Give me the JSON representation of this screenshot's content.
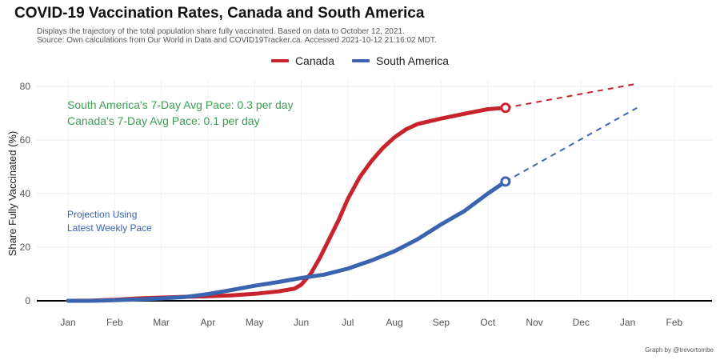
{
  "header": {
    "title": "COVID-19 Vaccination Rates, Canada and South America",
    "subtitle_line1": "Displays the trajectory of the total population share fully vaccinated. Based on data to October 12, 2021.",
    "subtitle_line2": "Source: Own calculations from Our World in Data and COVID19Tracker.ca. Accessed 2021-10-12 21:16:02 MDT."
  },
  "credit": "Graph by @trevortombe",
  "annotations": {
    "sa_pace": "South America's 7-Day Avg Pace: 0.3 per day",
    "ca_pace": "Canada's 7-Day Avg Pace: 0.1 per day",
    "projection_line1": "Projection Using",
    "projection_line2": "Latest Weekly Pace"
  },
  "chart_data": {
    "type": "line",
    "title": "COVID-19 Vaccination Rates, Canada and South America",
    "xlabel": "",
    "ylabel": "Share Fully Vaccinated (%)",
    "ylim": [
      0,
      80
    ],
    "yticks": [
      0,
      20,
      40,
      60,
      80
    ],
    "xticks": [
      "Jan",
      "Feb",
      "Mar",
      "Apr",
      "May",
      "Jun",
      "Jul",
      "Aug",
      "Sep",
      "Oct",
      "Nov",
      "Dec",
      "Jan",
      "Feb"
    ],
    "x_unit": "month index starting at January 2021",
    "grid": true,
    "legend": "top",
    "colors": {
      "Canada": "#c8232c",
      "South America": "#3b64b0",
      "annotation_green": "#3d9c52"
    },
    "series": [
      {
        "name": "Canada",
        "x": [
          0,
          0.5,
          1,
          1.5,
          2,
          2.5,
          3,
          3.5,
          4,
          4.5,
          4.85,
          5,
          5.2,
          5.4,
          5.6,
          5.8,
          6,
          6.25,
          6.5,
          6.75,
          7,
          7.25,
          7.5,
          8,
          8.5,
          9,
          9.38
        ],
        "y": [
          0,
          0.1,
          0.4,
          0.9,
          1.2,
          1.5,
          1.7,
          2,
          2.6,
          3.5,
          4.5,
          6,
          10,
          16,
          23,
          30,
          38,
          46,
          52,
          57,
          61,
          64,
          66,
          68,
          69.8,
          71.5,
          72
        ]
      },
      {
        "name": "South America",
        "x": [
          0,
          0.5,
          1,
          1.5,
          2,
          2.5,
          3,
          3.5,
          4,
          4.5,
          5,
          5.5,
          6,
          6.5,
          7,
          7.5,
          8,
          8.5,
          9,
          9.38
        ],
        "y": [
          0,
          0,
          0.2,
          0.5,
          0.9,
          1.4,
          2.5,
          4,
          5.6,
          7,
          8.5,
          9.8,
          12,
          15,
          18.5,
          23,
          28.5,
          33.5,
          40,
          44.5
        ]
      }
    ],
    "projections": [
      {
        "name": "Canada",
        "x": [
          9.38,
          12.2
        ],
        "y": [
          72,
          81
        ]
      },
      {
        "name": "South America",
        "x": [
          9.38,
          12.2
        ],
        "y": [
          44.5,
          72
        ]
      }
    ]
  }
}
